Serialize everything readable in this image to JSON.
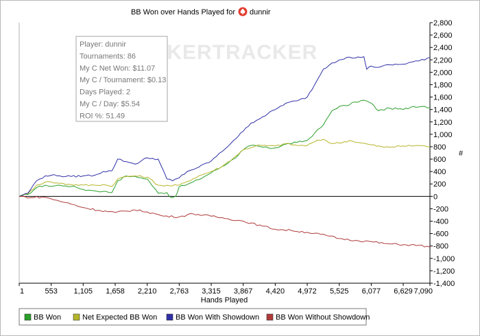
{
  "chart_data": {
    "type": "line",
    "title": "BB Won over Hands Played for",
    "player_name": "dunnir",
    "xlabel": "Hands Played",
    "ylabel": "#",
    "xlim": [
      1,
      7090
    ],
    "ylim": [
      -1400,
      2800
    ],
    "x_ticks": [
      1,
      553,
      1105,
      1658,
      2210,
      2763,
      3315,
      3867,
      4420,
      4972,
      5525,
      6077,
      6629,
      7090
    ],
    "x_tick_labels": [
      "1",
      "553",
      "1,105",
      "1,658",
      "2,210",
      "2,763",
      "3,315",
      "3,867",
      "4,420",
      "4,972",
      "5,525",
      "6,077",
      "6,629",
      "7,090"
    ],
    "y_ticks": [
      -1400,
      -1200,
      -1000,
      -800,
      -600,
      -400,
      -200,
      0,
      200,
      400,
      600,
      800,
      1000,
      1200,
      1400,
      1600,
      1800,
      2000,
      2200,
      2400,
      2600,
      2800
    ],
    "y_tick_labels": [
      "-1,400",
      "-1,200",
      "-1,000",
      "-800",
      "-600",
      "-400",
      "-200",
      "0",
      "200",
      "400",
      "600",
      "800",
      "1,000",
      "1,200",
      "1,400",
      "1,600",
      "1,800",
      "2,000",
      "2,200",
      "2,400",
      "2,600",
      "2,800"
    ],
    "series": [
      {
        "name": "BB Won",
        "color": "#2a9f2a",
        "x": [
          1,
          150,
          300,
          450,
          553,
          700,
          800,
          900,
          1000,
          1105,
          1200,
          1300,
          1450,
          1600,
          1700,
          1850,
          1950,
          2100,
          2210,
          2400,
          2550,
          2620,
          2700,
          2760,
          2900,
          3100,
          3315,
          3500,
          3700,
          3867,
          4000,
          4300,
          4420,
          4600,
          4800,
          4972,
          5100,
          5250,
          5400,
          5525,
          5650,
          5800,
          5950,
          6077,
          6200,
          6400,
          6629,
          6800,
          7000,
          7090
        ],
        "y": [
          0,
          30,
          140,
          180,
          160,
          180,
          170,
          160,
          140,
          110,
          100,
          90,
          80,
          60,
          250,
          330,
          320,
          300,
          280,
          50,
          60,
          -20,
          0,
          150,
          190,
          270,
          380,
          480,
          600,
          750,
          820,
          780,
          780,
          840,
          870,
          900,
          1020,
          1150,
          1380,
          1450,
          1460,
          1520,
          1550,
          1500,
          1380,
          1420,
          1400,
          1450,
          1450,
          1430
        ]
      },
      {
        "name": "Net Expected BB Won",
        "color": "#b5b52a",
        "x": [
          1,
          150,
          300,
          450,
          553,
          700,
          900,
          1105,
          1300,
          1450,
          1600,
          1700,
          1850,
          2000,
          2210,
          2400,
          2600,
          2763,
          2900,
          3100,
          3315,
          3500,
          3700,
          3867,
          4100,
          4420,
          4600,
          4800,
          4972,
          5100,
          5250,
          5400,
          5525,
          5700,
          5900,
          6077,
          6300,
          6629,
          6900,
          7090
        ],
        "y": [
          0,
          40,
          180,
          230,
          230,
          210,
          190,
          180,
          180,
          190,
          160,
          280,
          320,
          330,
          310,
          180,
          170,
          180,
          240,
          330,
          400,
          480,
          620,
          750,
          820,
          810,
          850,
          820,
          820,
          880,
          920,
          850,
          860,
          900,
          860,
          830,
          790,
          810,
          820,
          800
        ]
      },
      {
        "name": "BB Won With Showdown",
        "color": "#2f2fa8",
        "x": [
          1,
          150,
          300,
          450,
          553,
          700,
          900,
          1105,
          1300,
          1450,
          1600,
          1700,
          1850,
          2000,
          2210,
          2400,
          2550,
          2650,
          2763,
          2900,
          3100,
          3315,
          3500,
          3700,
          3867,
          4000,
          4200,
          4420,
          4600,
          4800,
          4972,
          5100,
          5250,
          5400,
          5525,
          5650,
          5800,
          5950,
          6000,
          6077,
          6200,
          6400,
          6629,
          6800,
          7000,
          7090
        ],
        "y": [
          0,
          50,
          250,
          330,
          340,
          330,
          320,
          330,
          340,
          400,
          410,
          600,
          560,
          520,
          620,
          600,
          280,
          250,
          300,
          400,
          470,
          570,
          720,
          900,
          1050,
          1180,
          1280,
          1400,
          1500,
          1540,
          1600,
          1800,
          2050,
          2150,
          2200,
          2240,
          2230,
          2250,
          2050,
          2100,
          2080,
          2120,
          2130,
          2170,
          2200,
          2240
        ]
      },
      {
        "name": "BB Won Without Showdown",
        "color": "#b03a3a",
        "x": [
          1,
          200,
          400,
          553,
          800,
          1105,
          1400,
          1658,
          2000,
          2210,
          2500,
          2763,
          3000,
          3315,
          3600,
          3867,
          4200,
          4420,
          4700,
          4972,
          5300,
          5525,
          5800,
          6077,
          6300,
          6629,
          6900,
          7090
        ],
        "y": [
          0,
          -20,
          -10,
          -40,
          -100,
          -180,
          -230,
          -260,
          -220,
          -250,
          -320,
          -330,
          -280,
          -320,
          -360,
          -400,
          -480,
          -530,
          -550,
          -580,
          -630,
          -680,
          -710,
          -730,
          -760,
          -780,
          -790,
          -820
        ]
      }
    ],
    "legend": [
      "BB Won",
      "Net Expected BB Won",
      "BB Won With Showdown",
      "BB Won Without Showdown"
    ],
    "legend_position": "bottom",
    "grid": false
  },
  "info_box": {
    "lines": [
      "Player: dunnir",
      "Tournaments: 86",
      "My C Net Won: $11.07",
      "My C / Tournament: $0.13",
      "Days Played: 2",
      "My C / Day: $5.54",
      "ROI %: 51.49"
    ]
  },
  "watermark": "POKERTRACKER"
}
